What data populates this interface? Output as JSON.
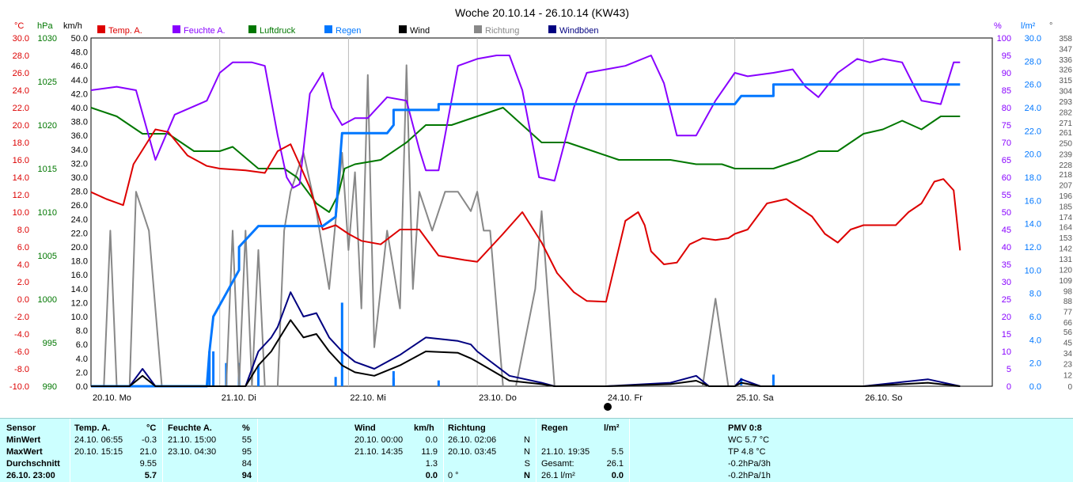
{
  "chart_data": {
    "type": "line",
    "title": "Woche 20.10.14 - 26.10.14 (KW43)",
    "x_labels": [
      "20.10. Mo",
      "21.10. Di",
      "22.10. Mi",
      "23.10. Do",
      "24.10. Fr",
      "25.10. Sa",
      "26.10. So"
    ],
    "axes": {
      "temp": {
        "unit": "°C",
        "range": [
          -10,
          30
        ],
        "ticks": [
          "30.0",
          "28.0",
          "26.0",
          "24.0",
          "22.0",
          "20.0",
          "18.0",
          "16.0",
          "14.0",
          "12.0",
          "10.0",
          "8.0",
          "6.0",
          "4.0",
          "2.0",
          "0.0",
          "-2.0",
          "-4.0",
          "-6.0",
          "-8.0",
          "-10.0"
        ]
      },
      "pressure": {
        "unit": "hPa",
        "range": [
          990,
          1030
        ],
        "ticks": [
          "1030",
          "1025",
          "1020",
          "1015",
          "1010",
          "1005",
          "1000",
          "995",
          "990"
        ]
      },
      "wind": {
        "unit": "km/h",
        "range": [
          0,
          50
        ],
        "ticks": [
          "50.0",
          "48.0",
          "46.0",
          "44.0",
          "42.0",
          "40.0",
          "38.0",
          "36.0",
          "34.0",
          "32.0",
          "30.0",
          "28.0",
          "26.0",
          "24.0",
          "22.0",
          "20.0",
          "18.0",
          "16.0",
          "14.0",
          "12.0",
          "10.0",
          "8.0",
          "6.0",
          "4.0",
          "2.0",
          "0.0"
        ]
      },
      "humidity": {
        "unit": "%",
        "range": [
          0,
          100
        ],
        "ticks": [
          "100",
          "95",
          "90",
          "85",
          "80",
          "75",
          "70",
          "65",
          "60",
          "55",
          "50",
          "45",
          "40",
          "35",
          "30",
          "25",
          "20",
          "15",
          "10",
          "5",
          "0"
        ]
      },
      "rain": {
        "unit": "l/m²",
        "range": [
          0,
          30
        ],
        "ticks": [
          "30.0",
          "28.0",
          "26.0",
          "24.0",
          "22.0",
          "20.0",
          "18.0",
          "16.0",
          "14.0",
          "12.0",
          "10.0",
          "8.0",
          "6.0",
          "4.0",
          "2.0",
          "0.0"
        ]
      },
      "direction": {
        "unit": "°",
        "range": [
          0,
          358
        ],
        "ticks": [
          "358",
          "347",
          "336",
          "326",
          "315",
          "304",
          "293",
          "282",
          "271",
          "261",
          "250",
          "239",
          "228",
          "218",
          "207",
          "196",
          "185",
          "174",
          "164",
          "153",
          "142",
          "131",
          "120",
          "109",
          "98",
          "88",
          "77",
          "66",
          "56",
          "45",
          "34",
          "23",
          "12",
          "0"
        ]
      }
    },
    "series": [
      {
        "name": "Temp. A.",
        "axis": "temp",
        "color": "#dd0000",
        "x": [
          0,
          0.12,
          0.25,
          0.33,
          0.5,
          0.6,
          0.75,
          0.9,
          1.0,
          1.2,
          1.35,
          1.45,
          1.55,
          1.62,
          1.7,
          1.8,
          1.9,
          2.0,
          2.1,
          2.25,
          2.4,
          2.55,
          2.7,
          2.9,
          3.0,
          3.2,
          3.35,
          3.5,
          3.62,
          3.75,
          3.85,
          4.0,
          4.15,
          4.25,
          4.3,
          4.35,
          4.45,
          4.55,
          4.65,
          4.75,
          4.85,
          4.95,
          5.0,
          5.1,
          5.25,
          5.4,
          5.5,
          5.6,
          5.7,
          5.8,
          5.9,
          6.0,
          6.1,
          6.25,
          6.35,
          6.45,
          6.55,
          6.62,
          6.7,
          6.75
        ],
        "y": [
          12.3,
          11.5,
          10.8,
          15.5,
          19.5,
          19.2,
          16.5,
          15.3,
          15.0,
          14.8,
          14.5,
          17.0,
          17.8,
          15.5,
          12.8,
          8.0,
          8.5,
          7.5,
          6.7,
          6.3,
          8.0,
          8.0,
          5.0,
          4.5,
          4.3,
          7.5,
          10.0,
          6.5,
          3.0,
          0.8,
          -0.2,
          -0.3,
          9.0,
          10.0,
          8.5,
          5.5,
          4.0,
          4.2,
          6.3,
          7.0,
          6.8,
          7.0,
          7.5,
          8.0,
          11.0,
          11.5,
          10.5,
          9.5,
          7.5,
          6.5,
          8.0,
          8.5,
          8.5,
          8.5,
          10.0,
          11.0,
          13.5,
          13.8,
          12.5,
          5.6
        ]
      },
      {
        "name": "Feuchte A.",
        "axis": "humidity",
        "color": "#8800ff",
        "x": [
          0,
          0.2,
          0.35,
          0.5,
          0.65,
          0.9,
          1.0,
          1.1,
          1.25,
          1.35,
          1.45,
          1.52,
          1.57,
          1.62,
          1.7,
          1.8,
          1.87,
          1.95,
          2.05,
          2.15,
          2.3,
          2.45,
          2.55,
          2.6,
          2.7,
          2.85,
          3.0,
          3.15,
          3.25,
          3.35,
          3.48,
          3.6,
          3.75,
          3.85,
          4.0,
          4.15,
          4.35,
          4.45,
          4.55,
          4.7,
          4.85,
          5.0,
          5.1,
          5.3,
          5.45,
          5.55,
          5.65,
          5.8,
          5.95,
          6.05,
          6.15,
          6.3,
          6.45,
          6.6,
          6.7,
          6.75
        ],
        "y": [
          85,
          86,
          85,
          65,
          78,
          82,
          90,
          93,
          93,
          92,
          72,
          60,
          57,
          58,
          84,
          90,
          80,
          75,
          77,
          77,
          83,
          82,
          68,
          62,
          62,
          92,
          94,
          95,
          95,
          85,
          60,
          59,
          80,
          90,
          91,
          92,
          95,
          87,
          72,
          72,
          82,
          90,
          89,
          90,
          91,
          86,
          83,
          90,
          94,
          93,
          94,
          93,
          82,
          81,
          93,
          93
        ]
      },
      {
        "name": "Luftdruck",
        "axis": "pressure",
        "color": "#007700",
        "x": [
          0,
          0.2,
          0.4,
          0.6,
          0.8,
          1.0,
          1.1,
          1.3,
          1.5,
          1.6,
          1.65,
          1.75,
          1.85,
          1.92,
          1.97,
          2.05,
          2.25,
          2.45,
          2.6,
          2.8,
          3.0,
          3.2,
          3.35,
          3.5,
          3.7,
          3.9,
          4.1,
          4.3,
          4.5,
          4.7,
          4.9,
          5.0,
          5.1,
          5.3,
          5.5,
          5.65,
          5.8,
          6.0,
          6.15,
          6.3,
          6.45,
          6.6,
          6.75
        ],
        "y": [
          1022,
          1021,
          1019,
          1019,
          1017,
          1017,
          1017.5,
          1015,
          1015,
          1014,
          1013,
          1011,
          1010,
          1012,
          1015,
          1015.5,
          1016,
          1018,
          1020,
          1020,
          1021,
          1022,
          1020,
          1018,
          1018,
          1017,
          1016,
          1016,
          1016,
          1015.5,
          1015.5,
          1015,
          1015,
          1015,
          1016,
          1017,
          1017,
          1019,
          1019.5,
          1020.5,
          1019.5,
          1021,
          1021
        ]
      },
      {
        "name": "Regen",
        "axis": "rain",
        "color": "#0077ff",
        "x": [
          0,
          0.8,
          0.9,
          0.92,
          0.95,
          1.05,
          1.15,
          1.15,
          1.3,
          1.35,
          1.45,
          1.65,
          1.75,
          1.8,
          1.9,
          1.95,
          2.2,
          2.3,
          2.35,
          2.35,
          2.6,
          2.7,
          2.7,
          3.8,
          4.2,
          4.95,
          5.0,
          5.05,
          5.3,
          5.3,
          6.0,
          6.75
        ],
        "y": [
          0,
          0,
          0,
          3.0,
          6.0,
          8.0,
          10.0,
          12.0,
          13.8,
          13.8,
          13.8,
          13.8,
          13.8,
          13.8,
          14.6,
          21.8,
          21.8,
          21.8,
          22.5,
          23.8,
          23.8,
          23.8,
          24.3,
          24.3,
          24.3,
          24.3,
          24.3,
          25.0,
          25.0,
          26.0,
          26.0,
          26.0
        ]
      },
      {
        "name": "Wind",
        "axis": "wind",
        "color": "#000000",
        "x": [
          0,
          0.3,
          0.4,
          0.5,
          0.8,
          1.0,
          1.2,
          1.3,
          1.4,
          1.45,
          1.55,
          1.65,
          1.75,
          1.85,
          1.95,
          2.05,
          2.2,
          2.4,
          2.6,
          2.85,
          2.95,
          3.0,
          3.25,
          3.5,
          3.6,
          3.8,
          4.0,
          4.5,
          4.7,
          4.8,
          5.0,
          5.05,
          5.2,
          6.0,
          6.5,
          6.75
        ],
        "y": [
          0,
          0,
          1.5,
          0,
          0,
          0,
          0,
          3.0,
          5.0,
          6.5,
          9.5,
          7.0,
          7.5,
          5.0,
          3.0,
          2.0,
          1.5,
          3.0,
          5.0,
          4.8,
          4.0,
          3.5,
          0.8,
          0.3,
          0.0,
          0.0,
          0.0,
          0.3,
          0.8,
          0.0,
          0.0,
          0.5,
          0.0,
          0.0,
          0.5,
          0.0
        ]
      },
      {
        "name": "Richtung",
        "axis": "direction",
        "color": "#888888",
        "x": [
          0,
          0.1,
          0.15,
          0.2,
          0.25,
          0.3,
          0.35,
          0.45,
          0.55,
          0.65,
          0.75,
          0.85,
          0.95,
          1.05,
          1.1,
          1.15,
          1.2,
          1.25,
          1.3,
          1.35,
          1.45,
          1.5,
          1.55,
          1.65,
          1.75,
          1.85,
          1.95,
          2.0,
          2.05,
          2.1,
          2.15,
          2.2,
          2.3,
          2.4,
          2.45,
          2.5,
          2.55,
          2.6,
          2.65,
          2.75,
          2.85,
          2.95,
          3.0,
          3.05,
          3.1,
          3.2,
          3.3,
          3.45,
          3.5,
          3.6,
          3.7,
          3.8,
          4.0,
          4.3,
          4.5,
          4.65,
          4.75,
          4.85,
          4.95,
          5.1,
          5.15,
          5.3,
          5.6,
          6.0,
          6.75
        ],
        "y": [
          0,
          0,
          160,
          0,
          0,
          0,
          200,
          160,
          0,
          0,
          0,
          0,
          0,
          0,
          160,
          0,
          160,
          0,
          140,
          0,
          0,
          160,
          200,
          240,
          180,
          100,
          240,
          140,
          220,
          80,
          320,
          40,
          160,
          80,
          330,
          100,
          200,
          180,
          160,
          200,
          200,
          180,
          200,
          160,
          160,
          0,
          0,
          100,
          180,
          0,
          0,
          0,
          0,
          0,
          0,
          0,
          0,
          90,
          0,
          0,
          0,
          0,
          0,
          0,
          0
        ]
      },
      {
        "name": "Windböen",
        "axis": "wind",
        "color": "#000080",
        "x": [
          0,
          0.3,
          0.4,
          0.5,
          0.8,
          1.0,
          1.2,
          1.3,
          1.4,
          1.45,
          1.55,
          1.65,
          1.75,
          1.85,
          1.95,
          2.05,
          2.2,
          2.4,
          2.6,
          2.85,
          2.95,
          3.0,
          3.25,
          3.5,
          3.6,
          3.8,
          4.0,
          4.5,
          4.7,
          4.8,
          5.0,
          5.05,
          5.2,
          6.0,
          6.5,
          6.75
        ],
        "y": [
          0,
          0,
          2.5,
          0,
          0,
          0,
          0,
          5.0,
          7.0,
          8.5,
          13.5,
          10.0,
          10.5,
          7.0,
          5.0,
          3.5,
          2.5,
          4.5,
          7.0,
          6.5,
          6.0,
          5.0,
          1.5,
          0.5,
          0.0,
          0.0,
          0.0,
          0.5,
          1.5,
          0.0,
          0.0,
          1.0,
          0.0,
          0.0,
          1.0,
          0.0
        ]
      }
    ]
  },
  "stats": {
    "sensor": {
      "title": "Sensor",
      "rows": [
        "MinWert",
        "MaxWert",
        "Durchschnitt",
        "26.10. 23:00"
      ]
    },
    "temp": {
      "title": "Temp. A.",
      "unit": "°C",
      "times": [
        "24.10.  06:55",
        "20.10.  15:15",
        "",
        ""
      ],
      "values": [
        "-0.3",
        "21.0",
        "9.55",
        "5.7"
      ]
    },
    "humidity": {
      "title": "Feuchte A.",
      "unit": "%",
      "times": [
        "21.10.  15:00",
        "23.10.  04:30",
        "",
        ""
      ],
      "values": [
        "55",
        "95",
        "84",
        "94"
      ]
    },
    "wind": {
      "title": "Wind",
      "unit": "km/h",
      "times": [
        "20.10.  00:00",
        "21.10.  14:35",
        "",
        ""
      ],
      "values": [
        "0.0",
        "11.9",
        "1.3",
        "0.0"
      ]
    },
    "direction": {
      "title": "Richtung",
      "times": [
        "26.10.  02:06",
        "20.10.  03:45",
        "",
        "0 °"
      ],
      "values": [
        "N",
        "N",
        "S",
        "N"
      ]
    },
    "rain": {
      "title": "Regen",
      "unit": "l/m²",
      "labels": [
        "21.10.  19:35",
        "Gesamt:",
        "26.1 l/m²"
      ],
      "values": [
        "5.5",
        "26.1",
        "0.0"
      ]
    },
    "pmv": {
      "title": "PMV 0:8",
      "rows": [
        "WC 5.7 °C",
        "TP 4.8 °C",
        "-0.2hPa/3h",
        "-0.2hPa/1h"
      ]
    }
  }
}
